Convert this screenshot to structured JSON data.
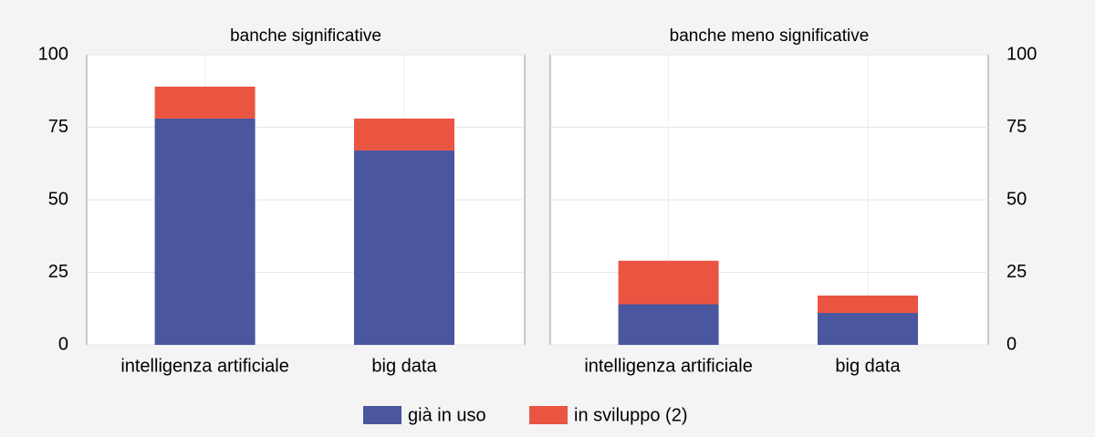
{
  "chart_data": [
    {
      "type": "bar",
      "stacked": true,
      "title": "banche significative",
      "y_axis_side": "left",
      "categories": [
        "intelligenza artificiale",
        "big data"
      ],
      "series": [
        {
          "name": "già in uso",
          "color": "#4a569e",
          "values": [
            78,
            67
          ]
        },
        {
          "name": "in sviluppo (2)",
          "color": "#e95541",
          "values": [
            11,
            11
          ]
        }
      ],
      "ylim": [
        0,
        100
      ],
      "yticks": [
        0,
        25,
        50,
        75,
        100
      ],
      "grid": true
    },
    {
      "type": "bar",
      "stacked": true,
      "title": "banche meno significative",
      "y_axis_side": "right",
      "categories": [
        "intelligenza artificiale",
        "big data"
      ],
      "series": [
        {
          "name": "già in uso",
          "color": "#4a569e",
          "values": [
            14,
            11
          ]
        },
        {
          "name": "in sviluppo (2)",
          "color": "#e95541",
          "values": [
            15,
            6
          ]
        }
      ],
      "ylim": [
        0,
        100
      ],
      "yticks": [
        0,
        25,
        50,
        75,
        100
      ],
      "grid": true
    }
  ]
}
